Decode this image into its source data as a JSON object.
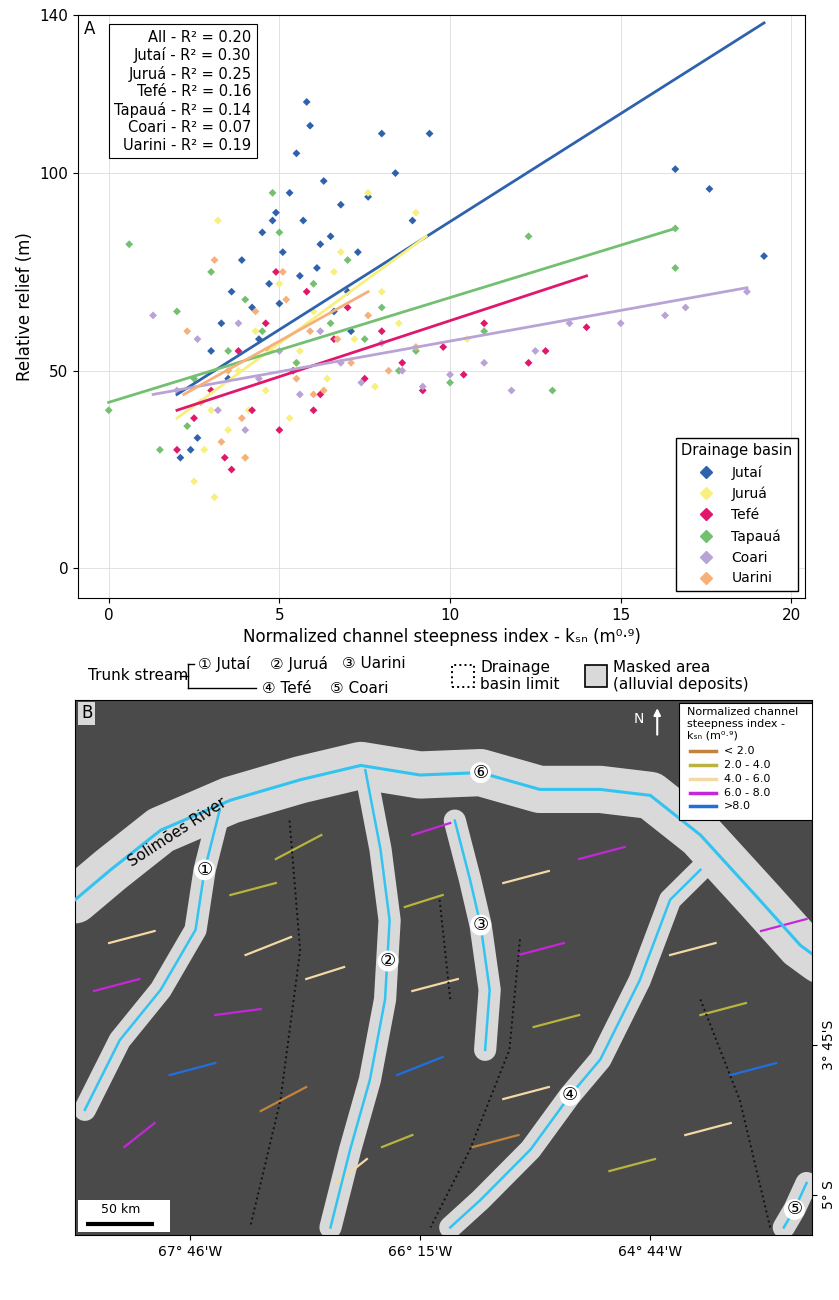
{
  "chart_data": [
    {
      "type": "scatter",
      "panel": "A",
      "xlabel": "Normalized channel steepness index - kₛₙ (m⁰·⁹)",
      "ylabel": "Relative relief (m)",
      "xlim": [
        -0.9,
        20.4
      ],
      "ylim": [
        -7.5,
        140
      ],
      "xticks": [
        0,
        5,
        10,
        15,
        20
      ],
      "yticks": [
        0,
        50,
        100,
        140
      ],
      "grid": true,
      "marker": "diamond",
      "annotations": [
        "All - R² = 0.20",
        "Jutaí - R² = 0.30",
        "Juruá - R² = 0.25",
        "Tefé - R² = 0.16",
        "Tapauá - R² = 0.14",
        "Coari - R² = 0.07",
        "Uarini - R² = 0.19"
      ],
      "legend": "lower right",
      "legend_title": "Drainage basin",
      "series": [
        {
          "name": "Jutaí",
          "color": "#2f62ad",
          "x": [
            2.1,
            2.4,
            2.6,
            3.0,
            3.3,
            3.6,
            3.9,
            4.2,
            4.5,
            4.7,
            4.9,
            5.1,
            5.3,
            5.5,
            5.7,
            5.9,
            6.1,
            6.3,
            6.5,
            6.8,
            7.0,
            7.3,
            7.6,
            8.0,
            8.4,
            8.9,
            9.4,
            4.4,
            5.0,
            5.6,
            6.2,
            6.6,
            3.5,
            16.6,
            17.6,
            19.2,
            5.8,
            4.8,
            7.1
          ],
          "y": [
            28,
            30,
            33,
            55,
            62,
            70,
            78,
            66,
            85,
            72,
            90,
            80,
            95,
            105,
            88,
            112,
            76,
            98,
            84,
            92,
            70,
            80,
            94,
            110,
            100,
            88,
            110,
            58,
            67,
            74,
            82,
            65,
            48,
            101,
            96,
            79,
            118,
            88,
            60
          ],
          "fit": {
            "x": [
              2.0,
              19.2
            ],
            "y": [
              44,
              138
            ]
          }
        },
        {
          "name": "Juruá",
          "color": "#f7ef7e",
          "x": [
            2.5,
            2.8,
            3.0,
            3.2,
            3.5,
            3.8,
            4.0,
            4.3,
            4.6,
            5.0,
            5.3,
            5.6,
            6.0,
            6.4,
            6.8,
            7.2,
            7.6,
            8.0,
            8.5,
            9.0,
            3.1,
            4.1,
            5.5,
            6.6,
            10.5,
            7.8
          ],
          "y": [
            22,
            30,
            40,
            88,
            35,
            50,
            28,
            60,
            45,
            72,
            38,
            55,
            65,
            48,
            80,
            58,
            95,
            70,
            62,
            90,
            18,
            40,
            52,
            75,
            58,
            46
          ],
          "fit": {
            "x": [
              2.0,
              9.3
            ],
            "y": [
              38,
              84
            ]
          }
        },
        {
          "name": "Tefé",
          "color": "#e0186c",
          "x": [
            2.0,
            2.5,
            3.0,
            3.4,
            3.8,
            4.2,
            4.6,
            5.0,
            5.4,
            5.8,
            6.2,
            6.6,
            7.0,
            7.5,
            8.0,
            8.6,
            9.2,
            9.8,
            10.4,
            11.0,
            12.3,
            12.8,
            14.0,
            3.6,
            4.9,
            6.0
          ],
          "y": [
            30,
            38,
            45,
            28,
            55,
            40,
            62,
            35,
            50,
            70,
            44,
            58,
            66,
            48,
            60,
            52,
            45,
            56,
            49,
            62,
            52,
            55,
            61,
            25,
            75,
            40
          ],
          "fit": {
            "x": [
              2.0,
              14.0
            ],
            "y": [
              40,
              74
            ]
          }
        },
        {
          "name": "Tapauá",
          "color": "#72c070",
          "x": [
            0.0,
            0.6,
            1.5,
            2.0,
            2.5,
            3.0,
            3.5,
            4.0,
            4.5,
            5.0,
            5.5,
            6.0,
            6.5,
            7.0,
            7.5,
            8.0,
            8.5,
            9.0,
            10.0,
            11.0,
            12.3,
            13.0,
            16.6,
            16.6,
            2.3,
            4.8
          ],
          "y": [
            40,
            82,
            30,
            65,
            48,
            75,
            55,
            68,
            60,
            85,
            52,
            72,
            62,
            78,
            58,
            66,
            50,
            55,
            47,
            60,
            84,
            45,
            76,
            86,
            36,
            95
          ],
          "fit": {
            "x": [
              0.0,
              16.6
            ],
            "y": [
              42,
              86
            ]
          }
        },
        {
          "name": "Coari",
          "color": "#b9a3d6",
          "x": [
            1.3,
            2.0,
            2.6,
            3.2,
            3.8,
            4.4,
            5.0,
            5.6,
            6.2,
            6.8,
            7.4,
            8.0,
            8.6,
            9.2,
            10.0,
            11.0,
            11.8,
            12.5,
            13.5,
            15.0,
            16.3,
            16.9,
            18.7,
            4.0
          ],
          "y": [
            64,
            45,
            58,
            40,
            62,
            48,
            55,
            44,
            60,
            52,
            47,
            57,
            50,
            46,
            49,
            52,
            45,
            55,
            62,
            62,
            64,
            66,
            70,
            35
          ],
          "fit": {
            "x": [
              1.3,
              18.7
            ],
            "y": [
              44,
              71
            ]
          }
        },
        {
          "name": "Uarini",
          "color": "#f5b07c",
          "x": [
            2.3,
            2.7,
            3.1,
            3.5,
            3.9,
            4.3,
            4.7,
            5.1,
            5.5,
            5.9,
            6.3,
            6.7,
            7.1,
            7.6,
            8.2,
            9.0,
            3.3,
            4.0,
            5.2,
            6.0
          ],
          "y": [
            60,
            42,
            78,
            50,
            38,
            65,
            55,
            75,
            48,
            60,
            45,
            58,
            52,
            64,
            50,
            56,
            32,
            28,
            68,
            44
          ],
          "fit": {
            "x": [
              2.2,
              7.6
            ],
            "y": [
              44,
              70
            ]
          }
        }
      ]
    },
    {
      "type": "map",
      "panel": "B",
      "xlim": [
        -68.525,
        -63.664
      ],
      "ylim": [
        -5.333,
        -0.875
      ],
      "xticks": [
        {
          "value": -67.767,
          "label": "67° 46'W"
        },
        {
          "value": -66.25,
          "label": "66° 15'W"
        },
        {
          "value": -64.733,
          "label": "64° 44'W"
        }
      ],
      "yticks": [
        {
          "value": -3.75,
          "label": "3° 45'S"
        },
        {
          "value": -5.0,
          "label": "5° S"
        }
      ],
      "trunk_stream_title": "Trunk stream",
      "basin_limit_label": "Drainage\nbasin limit",
      "masked_label": "Masked area\n(alluvial deposits)",
      "north": "N",
      "scale_bar": {
        "label": "50 km",
        "km": 50
      },
      "main_river": {
        "name": "Solimões River",
        "symbol": "⑥",
        "lon": [
          -68.525,
          -68.29,
          -67.96,
          -67.5,
          -67.04,
          -66.64,
          -66.25,
          -65.85,
          -65.46,
          -65.06,
          -64.73,
          -64.4,
          -64.01,
          -63.74,
          -63.61
        ],
        "lat": [
          -2.54,
          -2.29,
          -1.96,
          -1.71,
          -1.54,
          -1.42,
          -1.5,
          -1.48,
          -1.62,
          -1.62,
          -1.67,
          -2.0,
          -2.54,
          -2.92,
          -3.04
        ],
        "label_at": [
          -67.85,
          -1.98
        ],
        "symbol_at": [
          -65.85,
          -1.48
        ]
      },
      "trunk_streams": [
        {
          "symbol": "①",
          "name": "Jutaí",
          "lon": [
            -67.57,
            -67.67,
            -67.73,
            -67.96,
            -68.23,
            -68.46
          ],
          "lat": [
            -1.79,
            -2.29,
            -2.79,
            -3.29,
            -3.71,
            -4.29
          ],
          "label_at": [
            -67.67,
            -2.29
          ]
        },
        {
          "symbol": "②",
          "name": "Juruá",
          "lon": [
            -66.61,
            -66.51,
            -66.45,
            -66.48,
            -66.58,
            -66.71,
            -66.84
          ],
          "lat": [
            -1.46,
            -2.12,
            -2.71,
            -3.37,
            -4.04,
            -4.62,
            -5.27
          ],
          "label_at": [
            -66.46,
            -3.05
          ]
        },
        {
          "symbol": "③",
          "name": "Uarini",
          "lon": [
            -66.02,
            -65.92,
            -65.85,
            -65.79,
            -65.82
          ],
          "lat": [
            -1.88,
            -2.37,
            -2.75,
            -3.29,
            -3.79
          ],
          "label_at": [
            -65.85,
            -2.75
          ]
        },
        {
          "symbol": "④",
          "name": "Tefé",
          "lon": [
            -64.4,
            -64.6,
            -64.8,
            -65.06,
            -65.26,
            -65.52,
            -65.85,
            -66.05
          ],
          "lat": [
            -2.29,
            -2.54,
            -3.21,
            -3.87,
            -4.17,
            -4.62,
            -5.04,
            -5.27
          ],
          "label_at": [
            -65.26,
            -4.17
          ]
        },
        {
          "symbol": "⑤",
          "name": "Coari",
          "lon": [
            -63.7,
            -63.78,
            -63.85
          ],
          "lat": [
            -4.9,
            -5.12,
            -5.27
          ],
          "label_at": [
            -63.78,
            -5.12
          ]
        }
      ],
      "basin_limits": [
        {
          "lon": [
            -67.11,
            -67.04,
            -67.17,
            -67.37
          ],
          "lat": [
            -1.88,
            -2.96,
            -4.21,
            -5.27
          ]
        },
        {
          "lon": [
            -66.12,
            -66.05
          ],
          "lat": [
            -2.54,
            -3.37
          ]
        },
        {
          "lon": [
            -65.59,
            -65.66,
            -65.92,
            -66.18
          ],
          "lat": [
            -2.87,
            -3.79,
            -4.62,
            -5.27
          ]
        },
        {
          "lon": [
            -64.4,
            -64.14,
            -63.94
          ],
          "lat": [
            -3.37,
            -4.21,
            -5.27
          ]
        }
      ],
      "colorbar_title": "Normalized channel\nsteepness index -\nkₛₙ (m⁰·⁹)",
      "classes": [
        {
          "label": "< 2.0",
          "max": 2.0,
          "color": "#c2843c"
        },
        {
          "label": "2.0 - 4.0",
          "min": 2.0,
          "max": 4.0,
          "color": "#b8b43e"
        },
        {
          "label": "4.0 - 6.0",
          "min": 4.0,
          "max": 6.0,
          "color": "#f3d9a4"
        },
        {
          "label": "6.0 - 8.0",
          "min": 6.0,
          "max": 8.0,
          "color": "#c526d9"
        },
        {
          "label": ">8.0",
          "min": 8.0,
          "color": "#1f6fe0"
        }
      ],
      "tributaries": [
        {
          "lon": [
            -67.5,
            -67.2
          ],
          "lat": [
            -2.5,
            -2.4
          ],
          "ksn": 3.1
        },
        {
          "lon": [
            -67.4,
            -67.1
          ],
          "lat": [
            -3.0,
            -2.85
          ],
          "ksn": 5.2
        },
        {
          "lon": [
            -67.6,
            -67.3
          ],
          "lat": [
            -3.5,
            -3.45
          ],
          "ksn": 6.8
        },
        {
          "lon": [
            -67.9,
            -67.6
          ],
          "lat": [
            -4.0,
            -3.9
          ],
          "ksn": 9.1
        },
        {
          "lon": [
            -68.2,
            -68.0
          ],
          "lat": [
            -4.6,
            -4.4
          ],
          "ksn": 7.3
        },
        {
          "lon": [
            -67.2,
            -66.9
          ],
          "lat": [
            -2.2,
            -2.0
          ],
          "ksn": 2.5
        },
        {
          "lon": [
            -67.0,
            -66.75
          ],
          "lat": [
            -3.2,
            -3.1
          ],
          "ksn": 4.7
        },
        {
          "lon": [
            -67.3,
            -67.0
          ],
          "lat": [
            -4.3,
            -4.1
          ],
          "ksn": 1.5
        },
        {
          "lon": [
            -66.3,
            -66.05
          ],
          "lat": [
            -2.0,
            -1.9
          ],
          "ksn": 6.5
        },
        {
          "lon": [
            -66.35,
            -66.1
          ],
          "lat": [
            -2.6,
            -2.5
          ],
          "ksn": 3.4
        },
        {
          "lon": [
            -66.3,
            -66.0
          ],
          "lat": [
            -3.3,
            -3.2
          ],
          "ksn": 5.6
        },
        {
          "lon": [
            -66.4,
            -66.1
          ],
          "lat": [
            -4.0,
            -3.85
          ],
          "ksn": 8.6
        },
        {
          "lon": [
            -66.5,
            -66.3
          ],
          "lat": [
            -4.6,
            -4.5
          ],
          "ksn": 2.9
        },
        {
          "lon": [
            -65.7,
            -65.4
          ],
          "lat": [
            -2.4,
            -2.3
          ],
          "ksn": 4.4
        },
        {
          "lon": [
            -65.6,
            -65.3
          ],
          "lat": [
            -3.0,
            -2.9
          ],
          "ksn": 7.1
        },
        {
          "lon": [
            -65.5,
            -65.2
          ],
          "lat": [
            -3.6,
            -3.5
          ],
          "ksn": 3.8
        },
        {
          "lon": [
            -65.7,
            -65.4
          ],
          "lat": [
            -4.2,
            -4.1
          ],
          "ksn": 5.3
        },
        {
          "lon": [
            -65.9,
            -65.6
          ],
          "lat": [
            -4.6,
            -4.5
          ],
          "ksn": 1.8
        },
        {
          "lon": [
            -65.2,
            -64.9
          ],
          "lat": [
            -2.2,
            -2.1
          ],
          "ksn": 6.2
        },
        {
          "lon": [
            -64.6,
            -64.3
          ],
          "lat": [
            -3.0,
            -2.9
          ],
          "ksn": 4.9
        },
        {
          "lon": [
            -64.4,
            -64.1
          ],
          "lat": [
            -3.5,
            -3.4
          ],
          "ksn": 2.7
        },
        {
          "lon": [
            -64.2,
            -63.9
          ],
          "lat": [
            -4.0,
            -3.9
          ],
          "ksn": 8.4
        },
        {
          "lon": [
            -64.5,
            -64.2
          ],
          "lat": [
            -4.5,
            -4.4
          ],
          "ksn": 5.8
        },
        {
          "lon": [
            -65.0,
            -64.7
          ],
          "lat": [
            -4.8,
            -4.7
          ],
          "ksn": 3.3
        },
        {
          "lon": [
            -64.0,
            -63.7
          ],
          "lat": [
            -2.8,
            -2.7
          ],
          "ksn": 6.9
        },
        {
          "lon": [
            -66.8,
            -66.6
          ],
          "lat": [
            -4.9,
            -4.7
          ],
          "ksn": 4.1
        },
        {
          "lon": [
            -68.4,
            -68.1
          ],
          "lat": [
            -3.3,
            -3.2
          ],
          "ksn": 7.6
        },
        {
          "lon": [
            -68.3,
            -68.0
          ],
          "lat": [
            -2.9,
            -2.8
          ],
          "ksn": 5.0
        }
      ]
    }
  ]
}
